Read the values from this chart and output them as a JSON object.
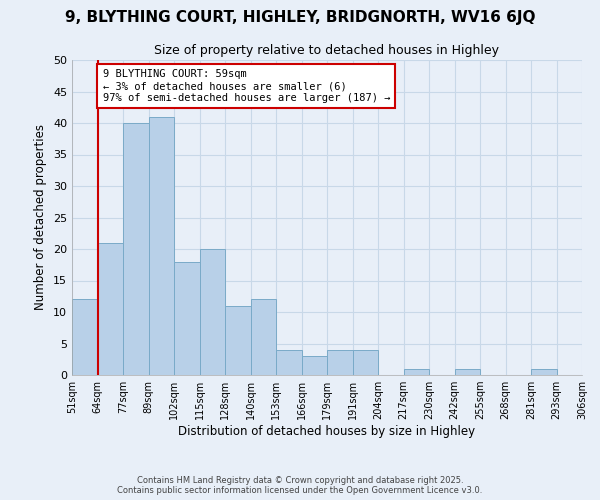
{
  "title": "9, BLYTHING COURT, HIGHLEY, BRIDGNORTH, WV16 6JQ",
  "subtitle": "Size of property relative to detached houses in Highley",
  "xlabel": "Distribution of detached houses by size in Highley",
  "ylabel": "Number of detached properties",
  "bin_labels": [
    "51sqm",
    "64sqm",
    "77sqm",
    "89sqm",
    "102sqm",
    "115sqm",
    "128sqm",
    "140sqm",
    "153sqm",
    "166sqm",
    "179sqm",
    "191sqm",
    "204sqm",
    "217sqm",
    "230sqm",
    "242sqm",
    "255sqm",
    "268sqm",
    "281sqm",
    "293sqm",
    "306sqm"
  ],
  "bar_values": [
    12,
    21,
    40,
    41,
    18,
    20,
    11,
    12,
    4,
    3,
    4,
    4,
    0,
    1,
    0,
    1,
    0,
    0,
    1,
    0
  ],
  "bar_color": "#b8d0e8",
  "bar_edge_color": "#7aaac8",
  "vline_color": "#cc0000",
  "annotation_line1": "9 BLYTHING COURT: 59sqm",
  "annotation_line2": "← 3% of detached houses are smaller (6)",
  "annotation_line3": "97% of semi-detached houses are larger (187) →",
  "annotation_box_color": "#cc0000",
  "ylim": [
    0,
    50
  ],
  "yticks": [
    0,
    5,
    10,
    15,
    20,
    25,
    30,
    35,
    40,
    45,
    50
  ],
  "grid_color": "#c8d8e8",
  "background_color": "#e8eff8",
  "footer_line1": "Contains HM Land Registry data © Crown copyright and database right 2025.",
  "footer_line2": "Contains public sector information licensed under the Open Government Licence v3.0."
}
